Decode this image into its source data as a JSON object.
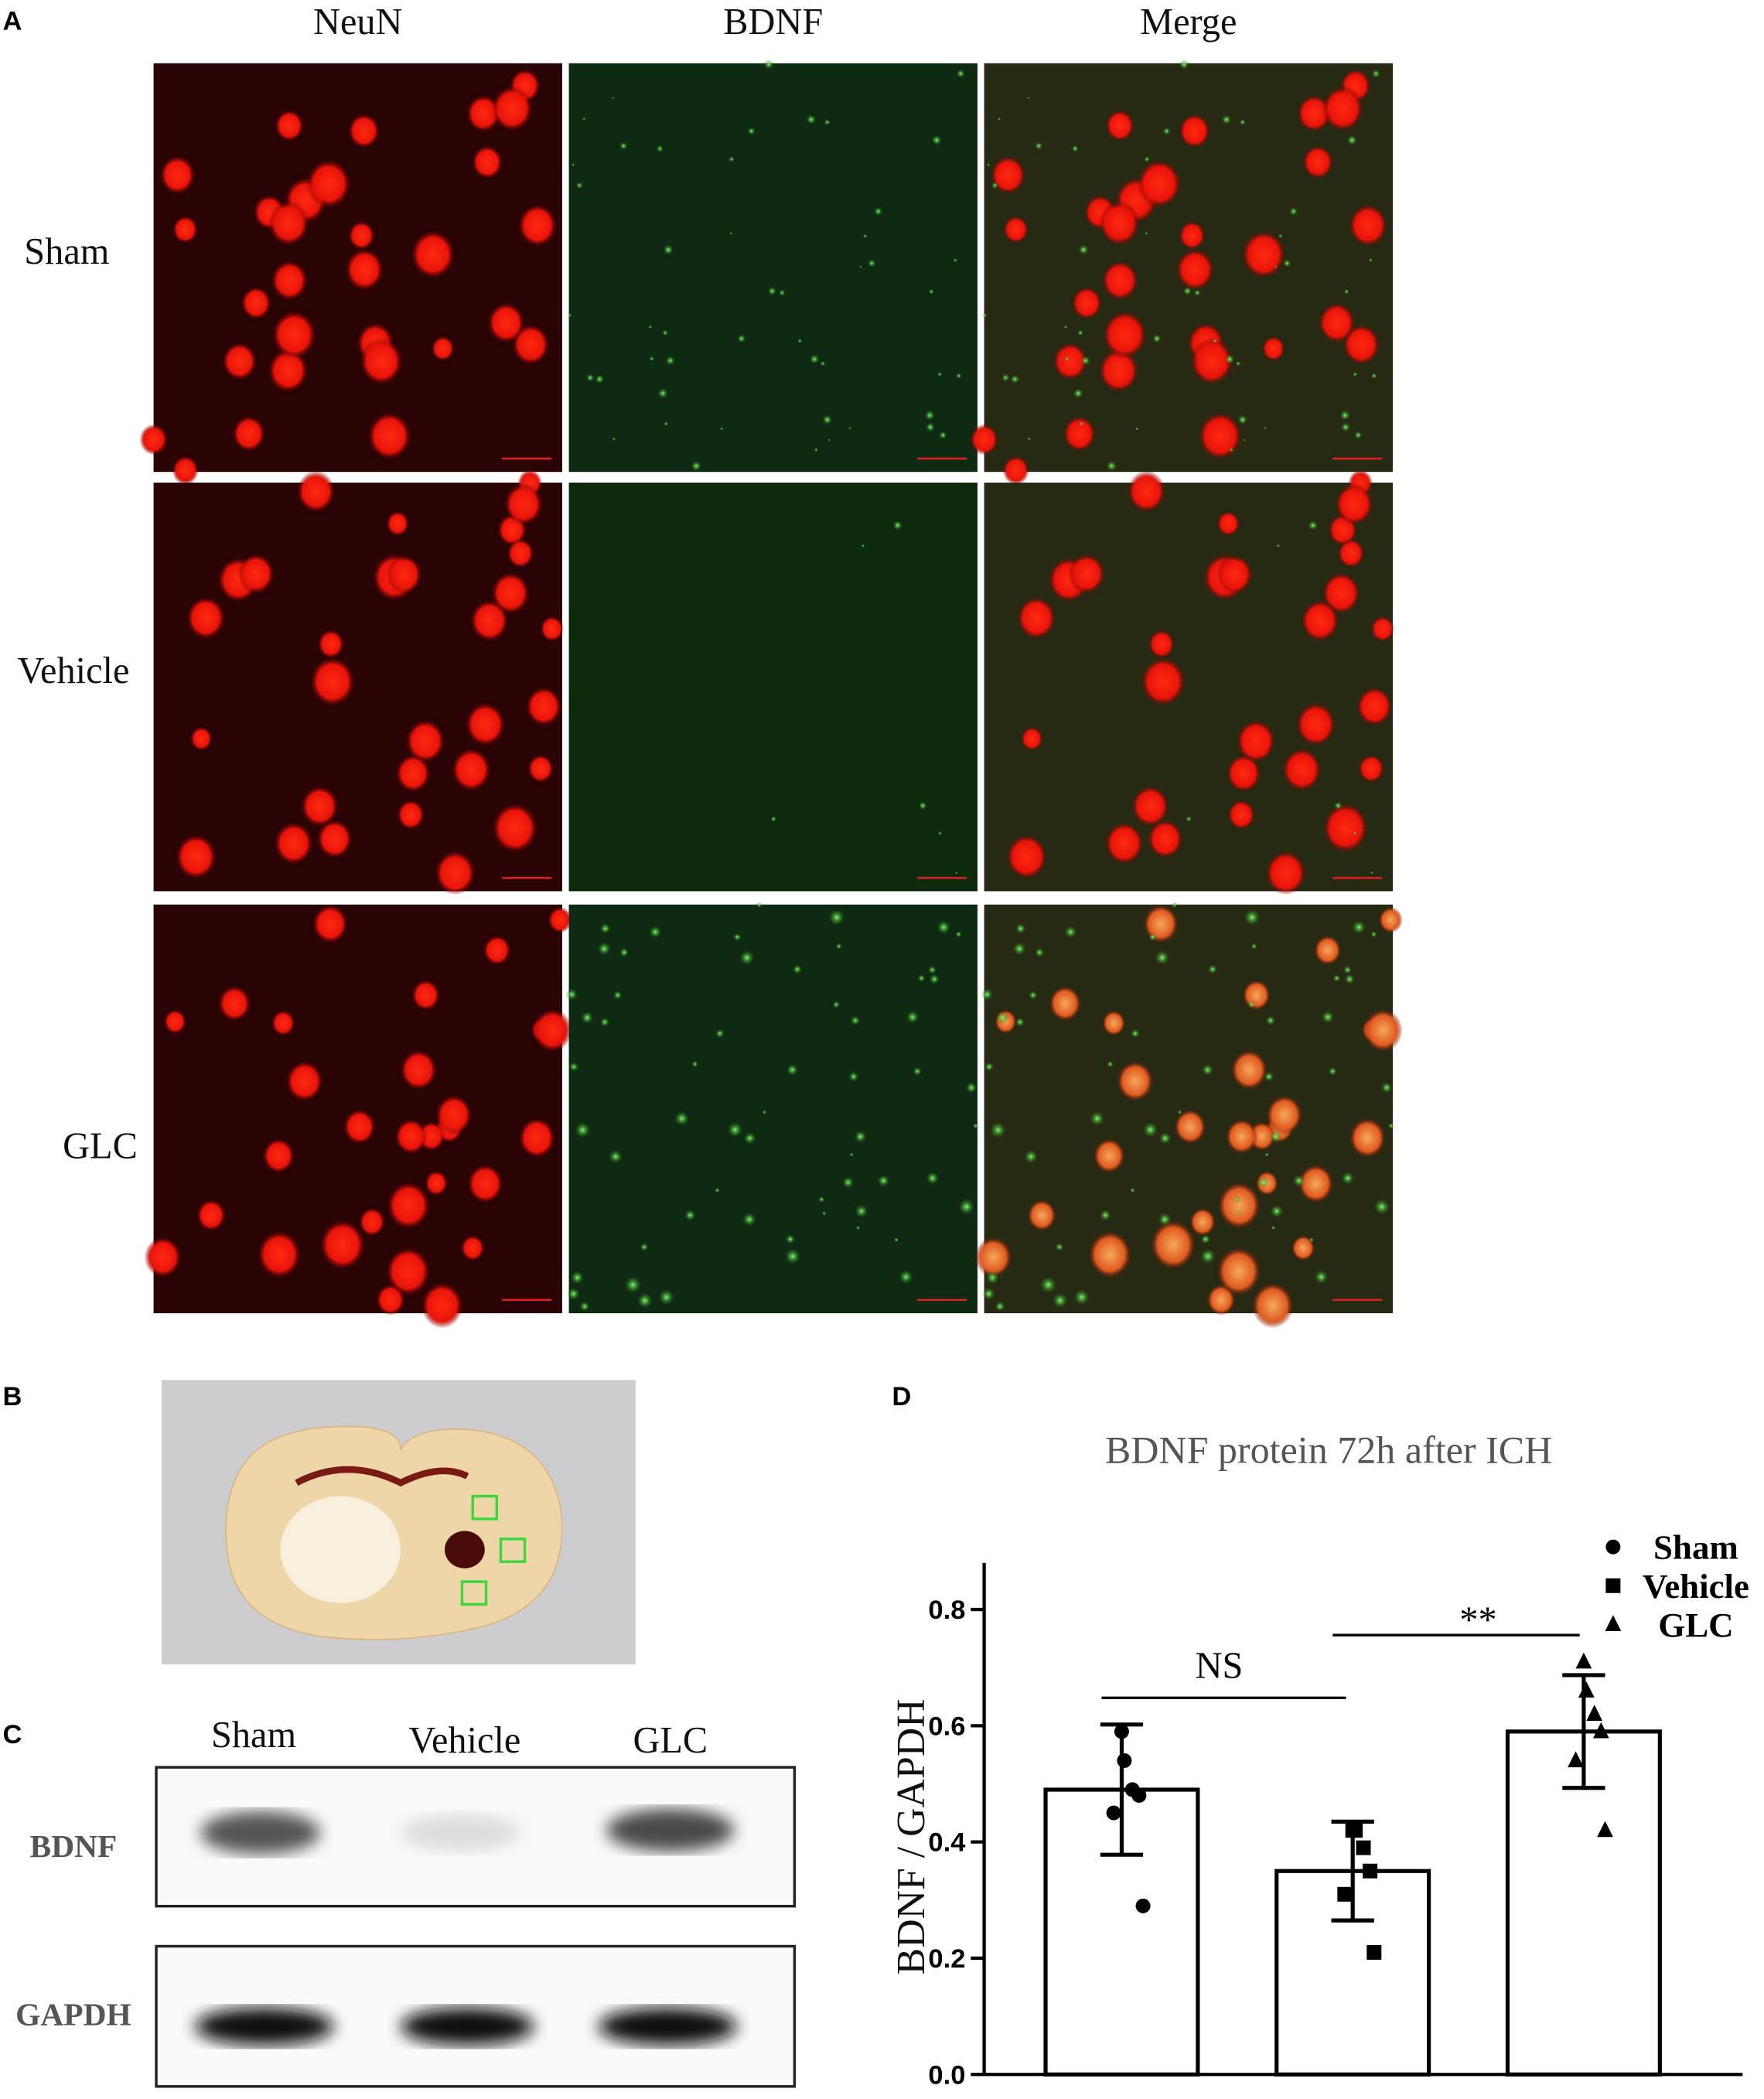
{
  "panel_labels": [
    "A",
    "B",
    "C",
    "D"
  ],
  "panel_a": {
    "columns": [
      "NeuN",
      "BDNF",
      "Merge"
    ],
    "rows": [
      "Sham",
      "Vehicle",
      "GLC"
    ]
  },
  "panel_c": {
    "lanes": [
      "Sham",
      "Vehicle",
      "GLC"
    ],
    "rows": [
      "BDNF",
      "GAPDH"
    ]
  },
  "chart_data": {
    "type": "bar",
    "title": "BDNF protein 72h after ICH",
    "y_label": "BDNF / GAPDH",
    "ylim": [
      0,
      0.88
    ],
    "yticks": [
      {
        "value": 0,
        "label": "0.0"
      },
      {
        "value": 0.2,
        "label": "0.2"
      },
      {
        "value": 0.4,
        "label": "0.4"
      },
      {
        "value": 0.6,
        "label": "0.6"
      },
      {
        "value": 0.8,
        "label": "0.8"
      }
    ],
    "series": [
      {
        "name": "Sham",
        "marker": "circle",
        "color": "#000000",
        "mean": 0.49,
        "error": 0.112,
        "values": [
          0.59,
          0.54,
          0.49,
          0.48,
          0.45,
          0.29
        ]
      },
      {
        "name": "Vehicle",
        "marker": "square",
        "color": "#000000",
        "mean": 0.35,
        "error": 0.085,
        "values": [
          0.42,
          0.42,
          0.39,
          0.35,
          0.31,
          0.21
        ]
      },
      {
        "name": "GLC",
        "marker": "triangle",
        "color": "#000000",
        "mean": 0.59,
        "error": 0.097,
        "values": [
          0.71,
          0.66,
          0.62,
          0.59,
          0.54,
          0.42
        ]
      }
    ],
    "annotations": [
      "NS",
      "**"
    ]
  }
}
